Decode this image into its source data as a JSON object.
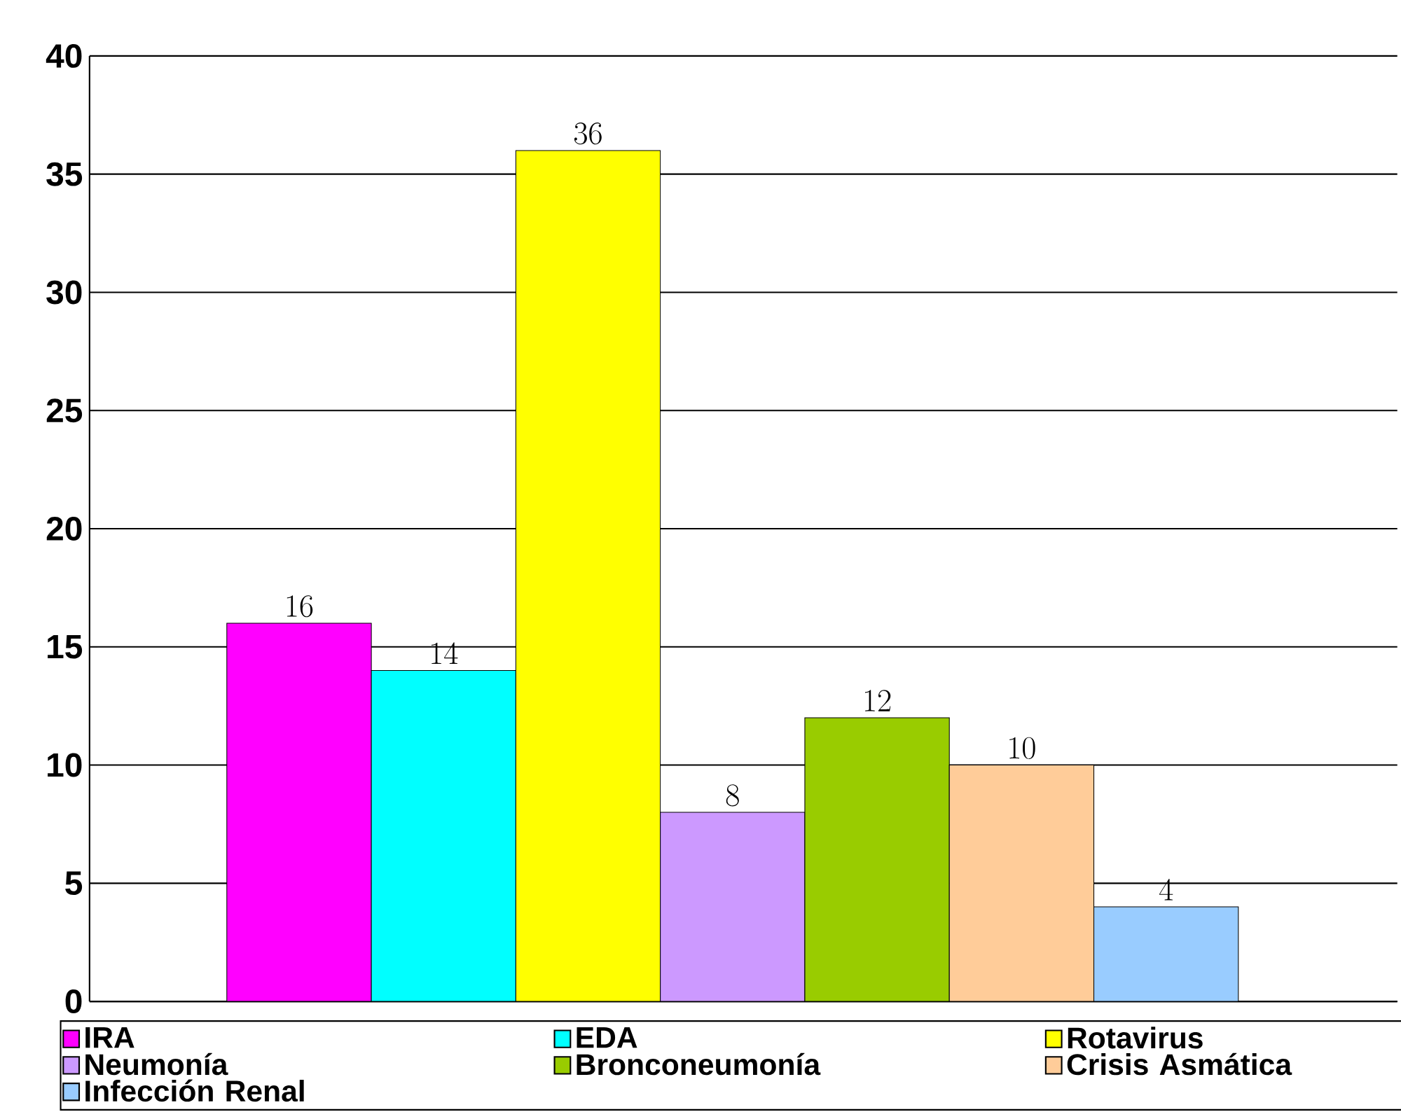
{
  "chart_data": {
    "type": "bar",
    "categories": [
      null
    ],
    "series": [
      {
        "name": "IRA",
        "color": "#ff00ff",
        "values": [
          16
        ]
      },
      {
        "name": "EDA",
        "color": "#00ffff",
        "values": [
          14
        ]
      },
      {
        "name": "Rotavirus",
        "color": "#ffff00",
        "values": [
          36
        ]
      },
      {
        "name": "Neumonía",
        "color": "#cc99ff",
        "values": [
          8
        ]
      },
      {
        "name": "Bronconeumonía",
        "color": "#99cc00",
        "values": [
          12
        ]
      },
      {
        "name": "Crisis Asmática",
        "color": "#ffcc99",
        "values": [
          10
        ]
      },
      {
        "name": "Infección Renal",
        "color": "#99ccff",
        "values": [
          4
        ]
      }
    ],
    "ylim": [
      0,
      40
    ],
    "yticks": [
      0,
      5,
      10,
      15,
      20,
      25,
      30,
      35,
      40
    ],
    "grid": "y",
    "legend": "bottom",
    "data_labels": true
  }
}
